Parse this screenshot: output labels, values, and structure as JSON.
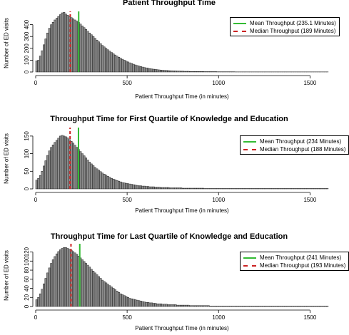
{
  "chart_data": [
    {
      "type": "bar",
      "title": "Patient Throughput Time",
      "xlabel": "Patient Throughput Time (in minutes)",
      "ylabel": "Number of ED visits",
      "xlim": [
        0,
        1600
      ],
      "ylim": [
        0,
        500
      ],
      "xticks": [
        0,
        500,
        1000,
        1500
      ],
      "yticks": [
        0,
        100,
        200,
        300,
        400
      ],
      "grid": false,
      "legend_position": "top-right",
      "bin_width": 10,
      "bin_start": 0,
      "values": [
        95,
        100,
        135,
        180,
        230,
        280,
        330,
        370,
        400,
        420,
        440,
        455,
        470,
        485,
        500,
        505,
        490,
        480,
        470,
        460,
        450,
        440,
        430,
        420,
        405,
        390,
        375,
        360,
        345,
        330,
        315,
        300,
        285,
        270,
        255,
        240,
        225,
        212,
        200,
        188,
        176,
        165,
        154,
        144,
        134,
        125,
        116,
        108,
        100,
        92,
        85,
        78,
        72,
        66,
        60,
        55,
        50,
        46,
        42,
        38,
        35,
        32,
        29,
        26,
        24,
        22,
        20,
        18,
        16,
        15,
        14,
        13,
        12,
        11,
        10,
        9,
        9,
        8,
        8,
        7,
        7,
        6,
        6,
        6,
        5,
        5,
        5,
        4,
        4,
        4,
        4,
        4,
        3,
        3,
        3,
        3,
        3,
        3,
        3,
        2,
        2,
        2,
        2,
        2,
        2,
        2,
        2,
        2,
        2,
        1,
        1,
        1,
        1,
        1,
        1,
        1,
        1,
        1,
        1,
        1,
        1,
        1,
        1,
        1,
        1,
        1,
        1,
        1,
        1,
        1,
        1,
        1,
        1,
        1,
        1,
        1,
        1,
        1,
        1,
        1,
        1,
        1,
        1,
        1,
        1,
        1,
        1,
        1,
        1,
        1,
        1,
        1,
        1,
        1,
        1,
        1,
        1,
        1,
        1,
        1
      ],
      "series": [
        {
          "name": "Mean Throughput (235.1 Minutes)",
          "value": 235.1,
          "color": "#33bb33",
          "style": "solid"
        },
        {
          "name": "Median Throughput (189 Minutes)",
          "value": 189,
          "color": "#cc2222",
          "style": "dashed"
        }
      ]
    },
    {
      "type": "bar",
      "title": "Throughput Time for First Quartile of Knowledge and Education",
      "xlabel": "Patient Throughput Time (in minutes)",
      "ylabel": "Number of ED visits",
      "xlim": [
        0,
        1600
      ],
      "ylim": [
        0,
        170
      ],
      "xticks": [
        0,
        500,
        1000,
        1500
      ],
      "yticks": [
        0,
        50,
        100,
        150
      ],
      "grid": false,
      "legend_position": "top-right",
      "bin_width": 10,
      "bin_start": 0,
      "values": [
        25,
        30,
        38,
        50,
        65,
        80,
        95,
        108,
        118,
        125,
        132,
        138,
        144,
        150,
        152,
        150,
        148,
        145,
        140,
        135,
        130,
        124,
        118,
        112,
        106,
        100,
        94,
        88,
        82,
        76,
        71,
        66,
        61,
        57,
        53,
        49,
        45,
        42,
        39,
        36,
        33,
        30,
        28,
        26,
        24,
        22,
        20,
        18,
        17,
        16,
        15,
        14,
        13,
        12,
        11,
        10,
        9,
        9,
        8,
        8,
        7,
        7,
        6,
        6,
        6,
        5,
        5,
        5,
        4,
        4,
        4,
        4,
        4,
        3,
        3,
        3,
        3,
        3,
        3,
        3,
        2,
        2,
        2,
        2,
        2,
        2,
        2,
        2,
        2,
        2,
        2,
        2,
        1,
        1,
        1,
        1,
        1,
        1,
        1,
        1,
        1,
        1,
        1,
        1,
        1,
        1,
        1,
        1,
        1,
        1,
        1,
        1,
        1,
        1,
        1,
        1,
        1,
        1,
        1,
        1,
        1,
        1,
        1,
        1,
        1,
        1,
        1,
        1,
        1,
        1,
        1,
        1,
        1,
        1,
        1,
        1,
        1,
        1,
        1,
        1,
        1,
        1,
        1,
        1,
        1,
        1,
        1,
        1,
        1,
        1,
        1,
        1,
        1,
        1,
        1,
        1,
        1,
        1,
        1,
        1
      ],
      "series": [
        {
          "name": "Mean Throughput (234 Minutes)",
          "value": 234,
          "color": "#33bb33",
          "style": "solid"
        },
        {
          "name": "Median Throughput (188 Minutes)",
          "value": 188,
          "color": "#cc2222",
          "style": "dashed"
        }
      ]
    },
    {
      "type": "bar",
      "title": "Throughput Time for Last Quartile of Knowledge and Education",
      "xlabel": "Patient Throughput Time (in minutes)",
      "ylabel": "Number of ED visits",
      "xlim": [
        0,
        1600
      ],
      "ylim": [
        0,
        135
      ],
      "xticks": [
        0,
        500,
        1000,
        1500
      ],
      "yticks": [
        0,
        20,
        40,
        60,
        80,
        100,
        120
      ],
      "grid": false,
      "legend_position": "top-right",
      "bin_width": 10,
      "bin_start": 0,
      "values": [
        15,
        20,
        28,
        38,
        50,
        62,
        74,
        85,
        95,
        103,
        110,
        116,
        121,
        125,
        128,
        130,
        130,
        128,
        126,
        124,
        121,
        118,
        115,
        111,
        107,
        103,
        99,
        95,
        91,
        87,
        82,
        78,
        74,
        70,
        66,
        62,
        58,
        55,
        52,
        49,
        46,
        43,
        40,
        37,
        34,
        31,
        28,
        26,
        24,
        22,
        20,
        18,
        17,
        16,
        15,
        14,
        13,
        12,
        11,
        10,
        9,
        9,
        8,
        8,
        7,
        7,
        6,
        6,
        6,
        5,
        5,
        5,
        4,
        4,
        4,
        4,
        4,
        3,
        3,
        3,
        3,
        3,
        3,
        3,
        2,
        2,
        2,
        2,
        2,
        2,
        2,
        2,
        2,
        2,
        2,
        1,
        1,
        1,
        1,
        1,
        1,
        1,
        1,
        1,
        1,
        1,
        1,
        1,
        1,
        1,
        1,
        1,
        1,
        1,
        1,
        1,
        1,
        1,
        1,
        1,
        1,
        1,
        1,
        1,
        1,
        1,
        1,
        1,
        1,
        1,
        1,
        1,
        1,
        1,
        1,
        1,
        1,
        1,
        1,
        1,
        1,
        1,
        1,
        1,
        1,
        1,
        1,
        1,
        1,
        1,
        1,
        1,
        1,
        1,
        1,
        1,
        1,
        1,
        1,
        1
      ],
      "series": [
        {
          "name": "Mean Throughput (241 Minutes)",
          "value": 241,
          "color": "#33bb33",
          "style": "solid"
        },
        {
          "name": "Median Throughput (193 Minutes)",
          "value": 193,
          "color": "#cc2222",
          "style": "dashed"
        }
      ]
    }
  ]
}
